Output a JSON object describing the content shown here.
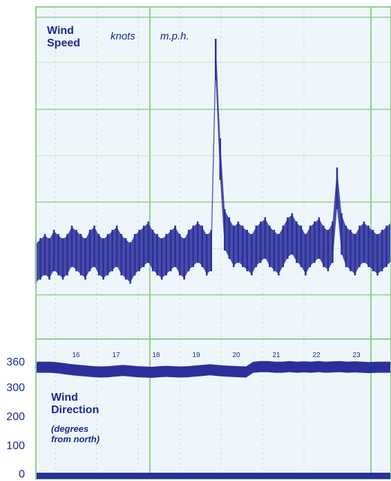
{
  "colors": {
    "trace": "#2b2f9a",
    "grid_major": "#8fd08a",
    "grid_minor": "#bfe6bb",
    "paper": "#eef6fb",
    "text": "#1a2a8a"
  },
  "speed_panel": {
    "title_line1": "Wind",
    "title_line2": "Speed",
    "unit_knots": "knots",
    "unit_mph": "m.p.h."
  },
  "direction_panel": {
    "title_line1": "Wind",
    "title_line2": "Direction",
    "sub_line1": "(degrees",
    "sub_line2": "from north)",
    "ytick_labels": [
      "360",
      "300",
      "200",
      "100",
      "0"
    ]
  },
  "chart_data": [
    {
      "type": "line",
      "title": "Wind Speed",
      "ylabel": "knots / m.p.h.",
      "ylim": [
        0,
        80
      ],
      "x_labels": [
        "16",
        "17",
        "18",
        "19",
        "20",
        "21",
        "22",
        "23"
      ],
      "series": [
        {
          "values": [
            20,
            21,
            22,
            21,
            23,
            22,
            21,
            22,
            24,
            23,
            22,
            21,
            23,
            24,
            22,
            21,
            22,
            23,
            24,
            22,
            21,
            20,
            22,
            23,
            24,
            25,
            23,
            22,
            21,
            22,
            23,
            24,
            22,
            21,
            23,
            24,
            25,
            24,
            22,
            23,
            69,
            45,
            28,
            26,
            24,
            25,
            24,
            23,
            22,
            24,
            25,
            26,
            24,
            23,
            22,
            24,
            26,
            27,
            25,
            24,
            22,
            24,
            25,
            26,
            24,
            23,
            25,
            38,
            27,
            24,
            23,
            22,
            24,
            25,
            24,
            23,
            22,
            23,
            24,
            25
          ]
        }
      ],
      "grid": true
    },
    {
      "type": "line",
      "title": "Wind Direction",
      "ylabel": "(degrees from north)",
      "ylim": [
        0,
        360
      ],
      "yticks": [
        0,
        100,
        200,
        300,
        360
      ],
      "series": [
        {
          "values": [
            350,
            350,
            350,
            348,
            345,
            342,
            340,
            338,
            336,
            335,
            336,
            338,
            340,
            338,
            336,
            335,
            334,
            336,
            337,
            336,
            335,
            336,
            338,
            340,
            342,
            340,
            338,
            337,
            336,
            335,
            350,
            352,
            352,
            350,
            350,
            352,
            350,
            351,
            350,
            352,
            350,
            351,
            352,
            350,
            351,
            350,
            349,
            350,
            350,
            350
          ]
        }
      ],
      "grid": true
    }
  ]
}
